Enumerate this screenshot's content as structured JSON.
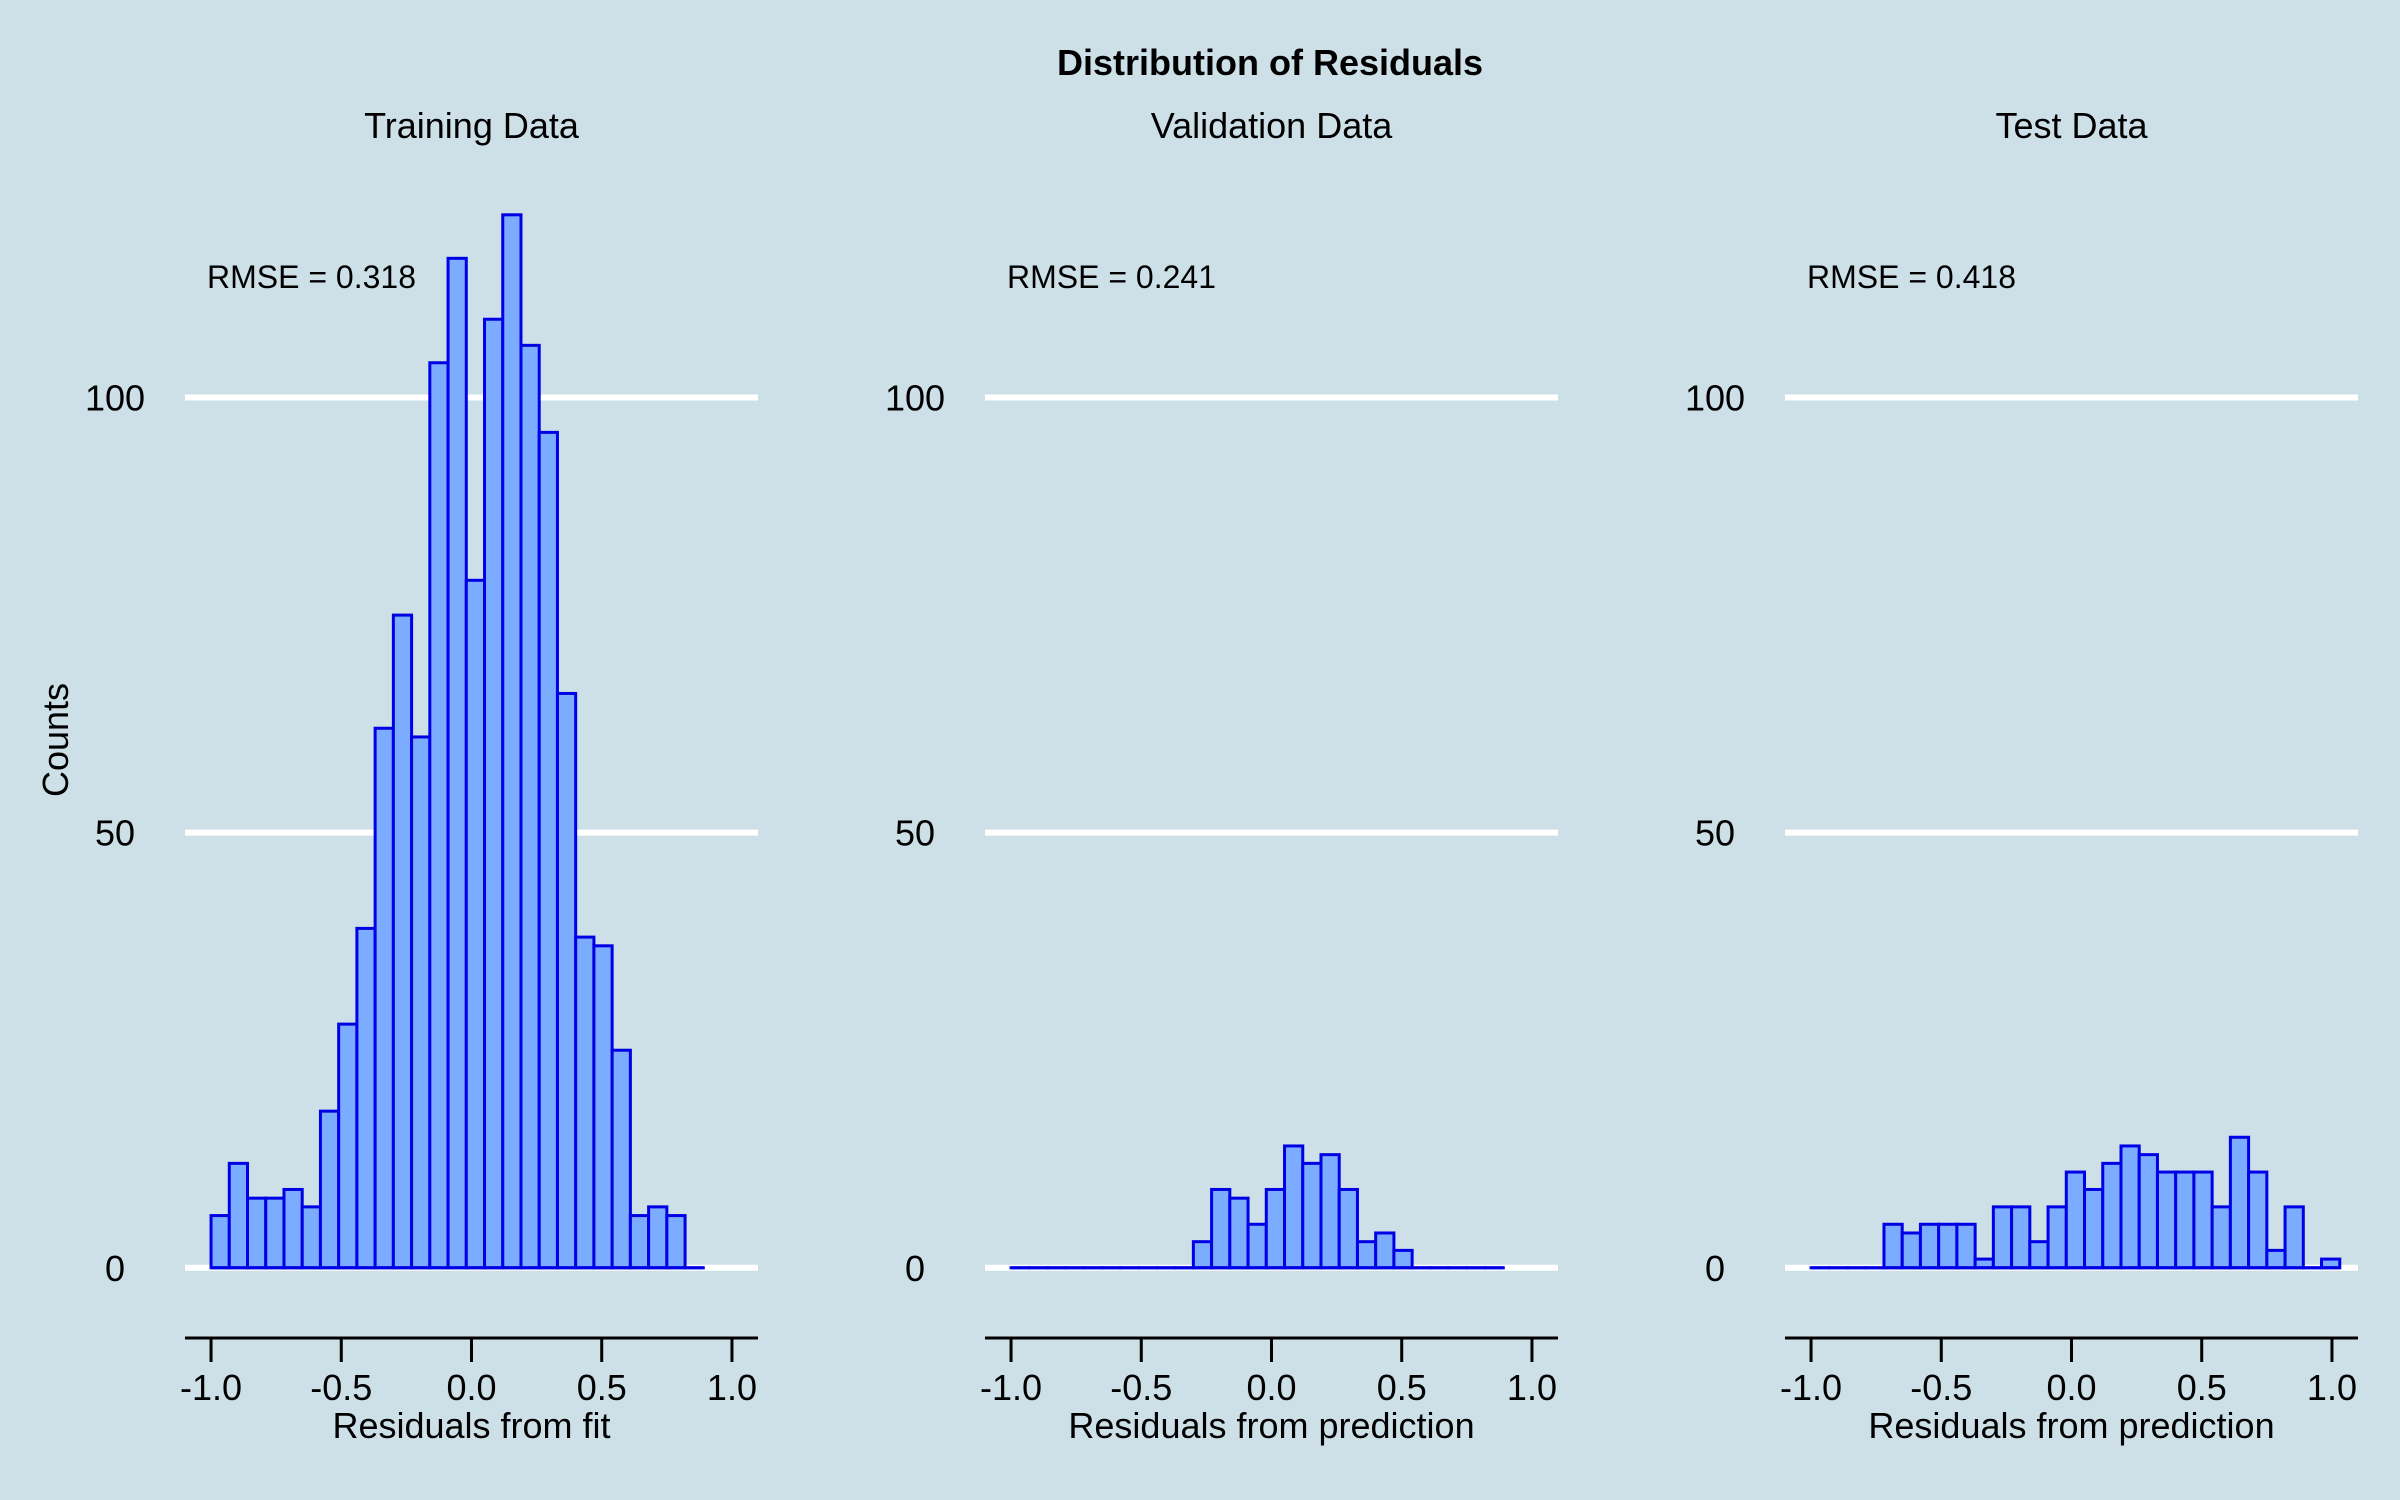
{
  "figure": {
    "title": "Distribution of Residuals",
    "y_label": "Counts",
    "background": "#cde0e7",
    "gridline_color": "#ffffff",
    "bar_fill": "#7bacff",
    "bar_edge": "#0000e6"
  },
  "chart_data": [
    {
      "type": "bar",
      "title": "Training Data",
      "xlabel": "Residuals from fit",
      "ylabel": "Counts",
      "annotation": "RMSE = 0.318",
      "bin_start": -1.0,
      "bin_width": 0.07,
      "values": [
        6,
        12,
        8,
        8,
        9,
        7,
        18,
        28,
        39,
        62,
        75,
        61,
        104,
        116,
        79,
        109,
        121,
        106,
        96,
        66,
        38,
        37,
        25,
        6,
        7,
        6,
        0
      ],
      "xlim": [
        -1.1,
        1.1
      ],
      "xticks": [
        "-1.0",
        "-0.5",
        "0.0",
        "0.5",
        "1.0"
      ],
      "ylim": [
        -6,
        125
      ],
      "yticks": [
        "0",
        "50",
        "100"
      ],
      "grid": true
    },
    {
      "type": "bar",
      "title": "Validation Data",
      "xlabel": "Residuals from prediction",
      "ylabel": "Counts",
      "annotation": "RMSE = 0.241",
      "bin_start": -1.0,
      "bin_width": 0.07,
      "values": [
        0,
        0,
        0,
        0,
        0,
        0,
        0,
        0,
        0,
        0,
        3,
        9,
        8,
        5,
        9,
        14,
        12,
        13,
        9,
        3,
        4,
        2,
        0,
        0,
        0,
        0,
        0
      ],
      "xlim": [
        -1.1,
        1.1
      ],
      "xticks": [
        "-1.0",
        "-0.5",
        "0.0",
        "0.5",
        "1.0"
      ],
      "ylim": [
        -6,
        125
      ],
      "yticks": [
        "0",
        "50",
        "100"
      ],
      "grid": true
    },
    {
      "type": "bar",
      "title": "Test Data",
      "xlabel": "Residuals from prediction",
      "ylabel": "Counts",
      "annotation": "RMSE = 0.418",
      "bin_start": -1.0,
      "bin_width": 0.07,
      "values": [
        0,
        0,
        0,
        0,
        5,
        4,
        5,
        5,
        5,
        1,
        7,
        7,
        3,
        7,
        11,
        9,
        12,
        14,
        13,
        11,
        11,
        11,
        7,
        15,
        11,
        2,
        7,
        0,
        1
      ],
      "xlim": [
        -1.1,
        1.1
      ],
      "xticks": [
        "-1.0",
        "-0.5",
        "0.0",
        "0.5",
        "1.0"
      ],
      "ylim": [
        -6,
        125
      ],
      "yticks": [
        "0",
        "50",
        "100"
      ],
      "grid": true
    }
  ]
}
